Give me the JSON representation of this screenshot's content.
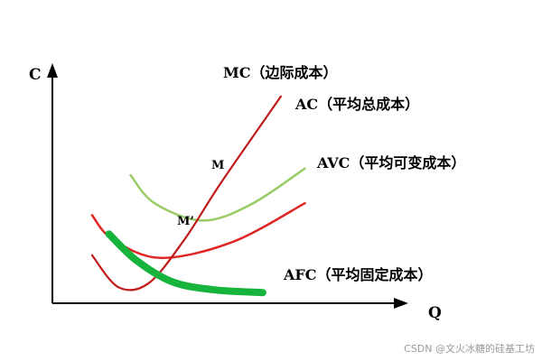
{
  "chart_data": {
    "type": "line",
    "title": "",
    "xlabel": "Q",
    "ylabel": "C",
    "grid": false,
    "legend": "none",
    "series": [
      {
        "name": "AC（平均总成本）",
        "color": "#99cc66",
        "points": [
          [
            13,
            9.6
          ],
          [
            17,
            7.5
          ],
          [
            25,
            6.2
          ],
          [
            33,
            7.4
          ],
          [
            42,
            10.1
          ]
        ]
      },
      {
        "name": "AVC（平均可变成本）",
        "color": "#e02525",
        "points": [
          [
            6.6,
            6.6
          ],
          [
            10,
            4.8
          ],
          [
            18,
            3.4
          ],
          [
            30,
            4.6
          ],
          [
            42,
            7.5
          ]
        ]
      },
      {
        "name": "MC（边际成本）",
        "color": "#c01a1a",
        "points": [
          [
            6.6,
            3.6
          ],
          [
            11,
            1.2
          ],
          [
            16,
            1.5
          ],
          [
            22,
            4.8
          ],
          [
            28,
            9.0
          ],
          [
            38,
            15.5
          ]
        ]
      },
      {
        "name": "AFC（平均固定成本）",
        "color": "#16b43c",
        "points": [
          [
            9.4,
            5.2
          ],
          [
            14,
            3.2
          ],
          [
            20,
            1.6
          ],
          [
            27,
            1.0
          ],
          [
            35,
            0.8
          ]
        ]
      }
    ],
    "annotations": [
      {
        "label": "M",
        "x": 24,
        "y": 6.2
      },
      {
        "label": "M’",
        "x": 19,
        "y": 3.5
      }
    ],
    "xlim": [
      0,
      58
    ],
    "ylim": [
      0,
      18
    ]
  },
  "watermark": "CSDN @文火冰糖的硅基工坊"
}
